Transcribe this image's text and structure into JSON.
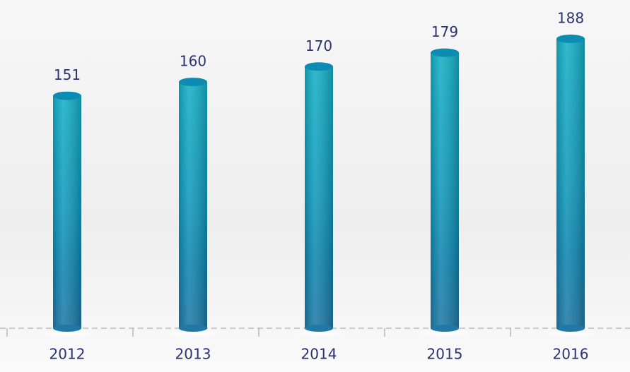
{
  "chart_data": {
    "type": "bar",
    "categories": [
      "2012",
      "2013",
      "2014",
      "2015",
      "2016"
    ],
    "values": [
      151,
      160,
      170,
      179,
      188
    ],
    "color": "#1a9cbf"
  }
}
